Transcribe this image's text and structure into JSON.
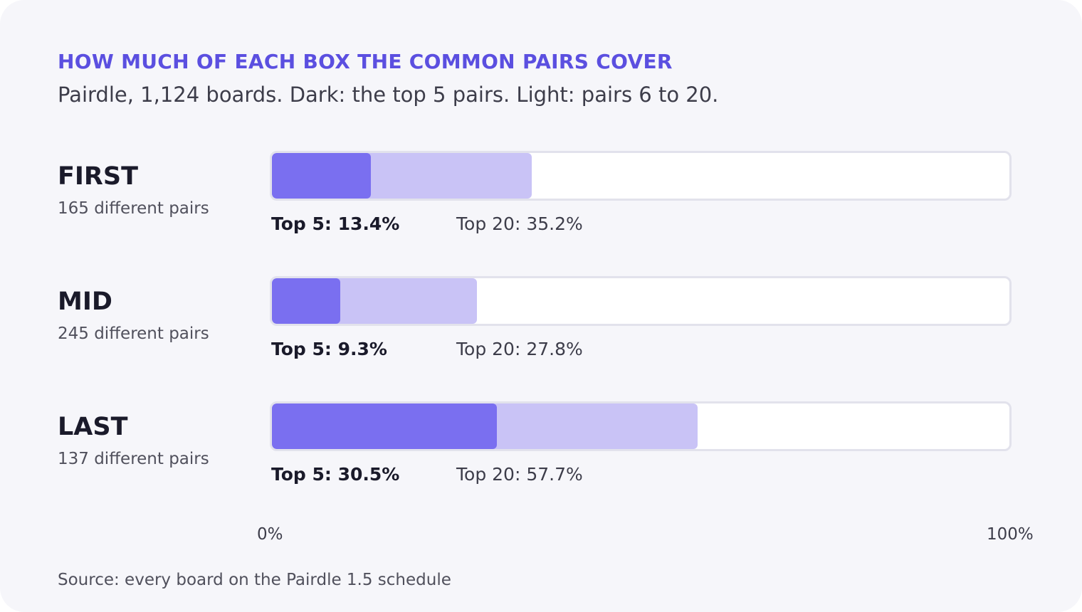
{
  "chart_data": {
    "type": "bar",
    "title": "HOW MUCH OF EACH BOX THE COMMON PAIRS COVER",
    "subtitle": "Pairdle, 1,124 boards. Dark: the top 5 pairs. Light: pairs 6 to 20.",
    "categories": [
      "FIRST",
      "MID",
      "LAST"
    ],
    "category_notes": [
      "165 different pairs",
      "245 different pairs",
      "137 different pairs"
    ],
    "series": [
      {
        "name": "Top 5",
        "values": [
          13.4,
          9.3,
          30.5
        ],
        "value_labels": [
          "Top 5: 13.4%",
          "Top 5: 9.3%",
          "Top 5: 30.5%"
        ],
        "color": "#7a6ff0"
      },
      {
        "name": "Top 20",
        "values": [
          35.2,
          27.8,
          57.7
        ],
        "value_labels": [
          "Top 20: 35.2%",
          "Top 20: 27.8%",
          "Top 20: 57.7%"
        ],
        "color": "#c9c3f6"
      }
    ],
    "axis": {
      "min": 0,
      "max": 100,
      "min_label": "0%",
      "max_label": "100%"
    },
    "orientation": "horizontal",
    "grid": false,
    "source": "Source: every board on the Pairdle 1.5 schedule"
  },
  "colors": {
    "accent": "#5b4fe0",
    "top5": "#7a6ff0",
    "top20": "#c9c3f6",
    "background": "#f6f6fa"
  }
}
